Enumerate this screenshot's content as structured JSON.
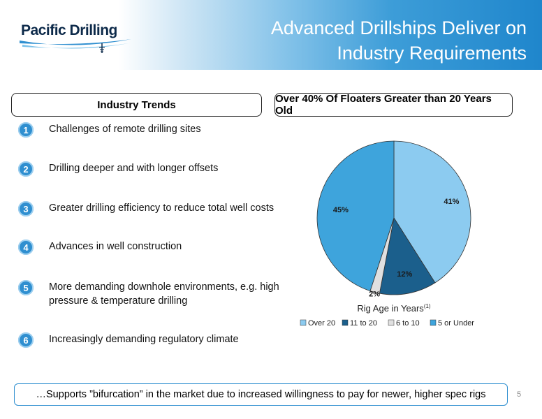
{
  "header": {
    "logo_text": "Pacific Drilling",
    "title_line1": "Advanced Drillships Deliver on",
    "title_line2": "Industry Requirements"
  },
  "left_section": {
    "heading": "Industry Trends",
    "trends": [
      {
        "num": "1",
        "text": "Challenges of remote drilling sites"
      },
      {
        "num": "2",
        "text": "Drilling deeper and with longer offsets"
      },
      {
        "num": "3",
        "text": "Greater drilling efficiency to reduce total well costs"
      },
      {
        "num": "4",
        "text": "Advances in well construction"
      },
      {
        "num": "5",
        "text": "More demanding downhole environments, e.g. high pressure & temperature drilling"
      },
      {
        "num": "6",
        "text": "Increasingly demanding regulatory climate"
      }
    ]
  },
  "right_section": {
    "heading": "Over 40% Of Floaters Greater than 20 Years Old"
  },
  "chart_data": {
    "type": "pie",
    "xlabel": "Rig Age in Years",
    "xlabel_superscript": "(1)",
    "categories": [
      "Over 20",
      "11 to 20",
      "6 to 10",
      "5 or Under"
    ],
    "values": [
      41,
      12,
      2,
      45
    ],
    "data_labels": [
      "41%",
      "12%",
      "2%",
      "45%"
    ],
    "colors": [
      "#8ccbf0",
      "#1b5f8c",
      "#e0e0e0",
      "#3ea4dc"
    ],
    "legend_position": "bottom"
  },
  "footer": {
    "text": "…Supports ”bifurcation” in the market due to increased willingness to pay for newer, higher spec rigs",
    "page_number": "5"
  }
}
